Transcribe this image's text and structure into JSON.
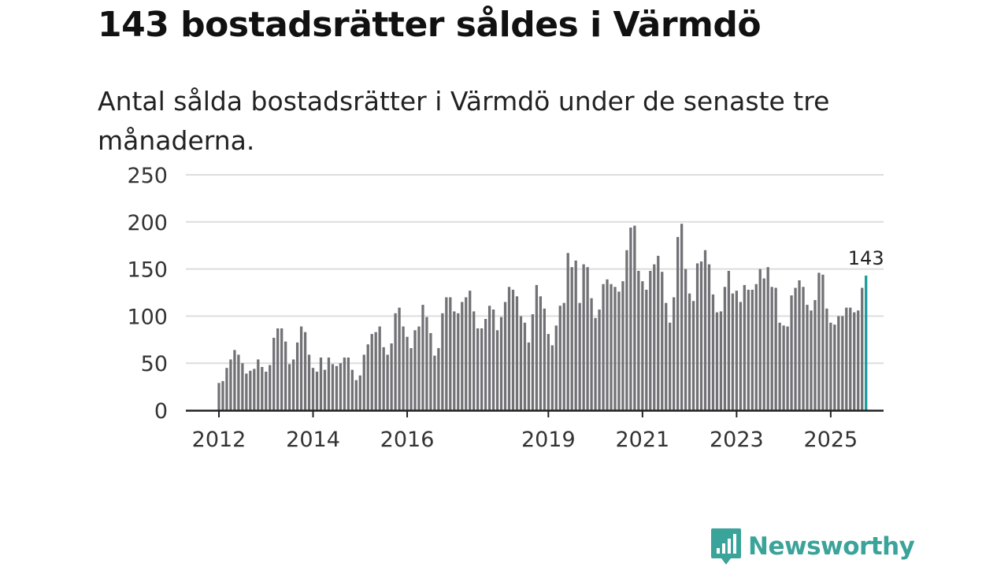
{
  "title": "143 bostadsrätter såldes i Värmdö",
  "subtitle": "Antal sålda bostadsrätter i Värmdö under de senaste tre månaderna.",
  "brand": {
    "name": "Newsworthy",
    "color": "#3aa39a",
    "icon": "newsworthy-logo-icon"
  },
  "chart_data": {
    "type": "bar",
    "title": "143 bostadsrätter såldes i Värmdö",
    "xlabel": "",
    "ylabel": "",
    "ylim": [
      0,
      250
    ],
    "yticks": [
      "0",
      "50",
      "100",
      "150",
      "200",
      "250"
    ],
    "xticks": [
      {
        "label": "2012",
        "index": 0
      },
      {
        "label": "2014",
        "index": 24
      },
      {
        "label": "2016",
        "index": 48
      },
      {
        "label": "2019",
        "index": 84
      },
      {
        "label": "2021",
        "index": 108
      },
      {
        "label": "2023",
        "index": 132
      },
      {
        "label": "2025",
        "index": 156
      }
    ],
    "bar_color": "#727176",
    "highlight_color": "#1a9c9c",
    "highlight_label": "143",
    "values": [
      29,
      31,
      45,
      54,
      64,
      59,
      50,
      39,
      42,
      44,
      54,
      46,
      41,
      48,
      77,
      87,
      87,
      73,
      49,
      54,
      72,
      89,
      83,
      59,
      45,
      41,
      56,
      43,
      56,
      49,
      47,
      50,
      56,
      56,
      43,
      32,
      37,
      59,
      70,
      81,
      83,
      89,
      67,
      59,
      71,
      103,
      109,
      89,
      78,
      66,
      85,
      89,
      112,
      99,
      82,
      58,
      66,
      103,
      120,
      120,
      105,
      103,
      115,
      120,
      127,
      105,
      87,
      87,
      97,
      111,
      107,
      85,
      99,
      115,
      131,
      128,
      121,
      100,
      93,
      72,
      102,
      133,
      121,
      108,
      81,
      69,
      90,
      111,
      114,
      167,
      152,
      159,
      114,
      155,
      152,
      119,
      98,
      107,
      134,
      139,
      134,
      131,
      126,
      137,
      170,
      194,
      196,
      148,
      137,
      128,
      148,
      155,
      164,
      147,
      114,
      93,
      120,
      184,
      198,
      150,
      124,
      116,
      156,
      158,
      170,
      155,
      123,
      104,
      105,
      131,
      148,
      124,
      127,
      115,
      133,
      128,
      128,
      134,
      150,
      140,
      152,
      131,
      130,
      93,
      90,
      89,
      122,
      130,
      138,
      131,
      112,
      106,
      117,
      146,
      144,
      108,
      93,
      91,
      100,
      100,
      109,
      109,
      104,
      106,
      130,
      143
    ]
  }
}
